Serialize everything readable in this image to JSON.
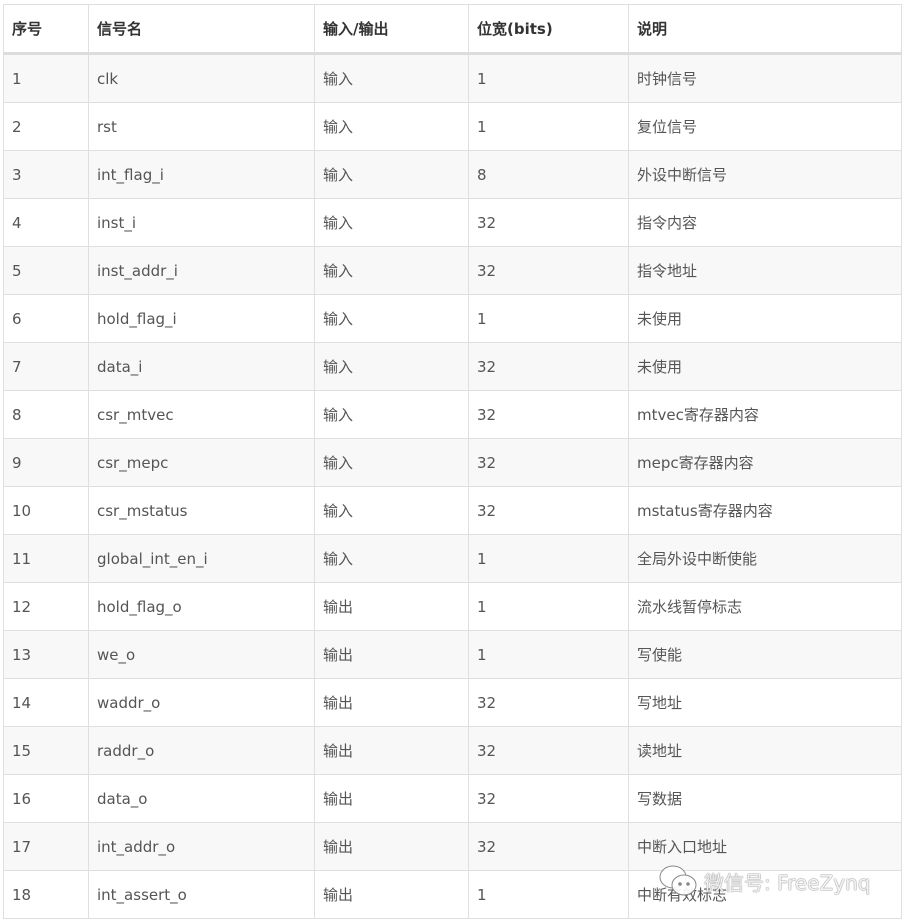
{
  "table": {
    "headers": [
      "序号",
      "信号名",
      "输入/输出",
      "位宽(bits)",
      "说明"
    ],
    "rows": [
      [
        "1",
        "clk",
        "输入",
        "1",
        "时钟信号"
      ],
      [
        "2",
        "rst",
        "输入",
        "1",
        "复位信号"
      ],
      [
        "3",
        "int_flag_i",
        "输入",
        "8",
        "外设中断信号"
      ],
      [
        "4",
        "inst_i",
        "输入",
        "32",
        "指令内容"
      ],
      [
        "5",
        "inst_addr_i",
        "输入",
        "32",
        "指令地址"
      ],
      [
        "6",
        "hold_flag_i",
        "输入",
        "1",
        "未使用"
      ],
      [
        "7",
        "data_i",
        "输入",
        "32",
        "未使用"
      ],
      [
        "8",
        "csr_mtvec",
        "输入",
        "32",
        "mtvec寄存器内容"
      ],
      [
        "9",
        "csr_mepc",
        "输入",
        "32",
        "mepc寄存器内容"
      ],
      [
        "10",
        "csr_mstatus",
        "输入",
        "32",
        "mstatus寄存器内容"
      ],
      [
        "11",
        "global_int_en_i",
        "输入",
        "1",
        "全局外设中断使能"
      ],
      [
        "12",
        "hold_flag_o",
        "输出",
        "1",
        "流水线暂停标志"
      ],
      [
        "13",
        "we_o",
        "输出",
        "1",
        "写使能"
      ],
      [
        "14",
        "waddr_o",
        "输出",
        "32",
        "写地址"
      ],
      [
        "15",
        "raddr_o",
        "输出",
        "32",
        "读地址"
      ],
      [
        "16",
        "data_o",
        "输出",
        "32",
        "写数据"
      ],
      [
        "17",
        "int_addr_o",
        "输出",
        "32",
        "中断入口地址"
      ],
      [
        "18",
        "int_assert_o",
        "输出",
        "1",
        "中断有效标志"
      ]
    ]
  },
  "watermark": {
    "icon": "wechat-icon",
    "text": "微信号: FreeZynq"
  }
}
